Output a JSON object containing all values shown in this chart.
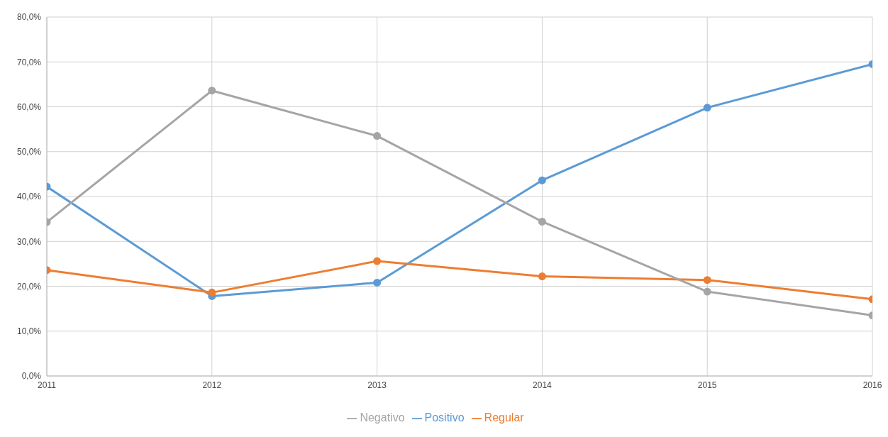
{
  "chart_data": {
    "type": "line",
    "x": [
      2011,
      2012,
      2013,
      2014,
      2015,
      2016
    ],
    "series": [
      {
        "name": "Positivo",
        "color": "#5b9bd5",
        "values": [
          42.2,
          17.8,
          20.8,
          43.6,
          59.8,
          69.5
        ]
      },
      {
        "name": "Regular",
        "color": "#ed7d31",
        "values": [
          23.6,
          18.6,
          25.6,
          22.2,
          21.4,
          17.1
        ]
      },
      {
        "name": "Negativo",
        "color": "#a5a5a5",
        "values": [
          34.3,
          63.6,
          53.5,
          34.4,
          18.8,
          13.5
        ]
      }
    ],
    "xlim": [
      2011,
      2016
    ],
    "xticks": [
      2011,
      2012,
      2013,
      2014,
      2015,
      2016
    ],
    "ylim": [
      0,
      80
    ],
    "yticks": [
      {
        "value": 0,
        "label": "0,0%"
      },
      {
        "value": 10,
        "label": "10,0%"
      },
      {
        "value": 20,
        "label": "20,0%"
      },
      {
        "value": 30,
        "label": "30,0%"
      },
      {
        "value": 40,
        "label": "40,0%"
      },
      {
        "value": 50,
        "label": "50,0%"
      },
      {
        "value": 60,
        "label": "60,0%"
      },
      {
        "value": 70,
        "label": "70,0%"
      },
      {
        "value": 80,
        "label": "80,0%"
      }
    ],
    "grid": true,
    "legend": "bottom",
    "marker": "circle",
    "line_style": "solid"
  }
}
